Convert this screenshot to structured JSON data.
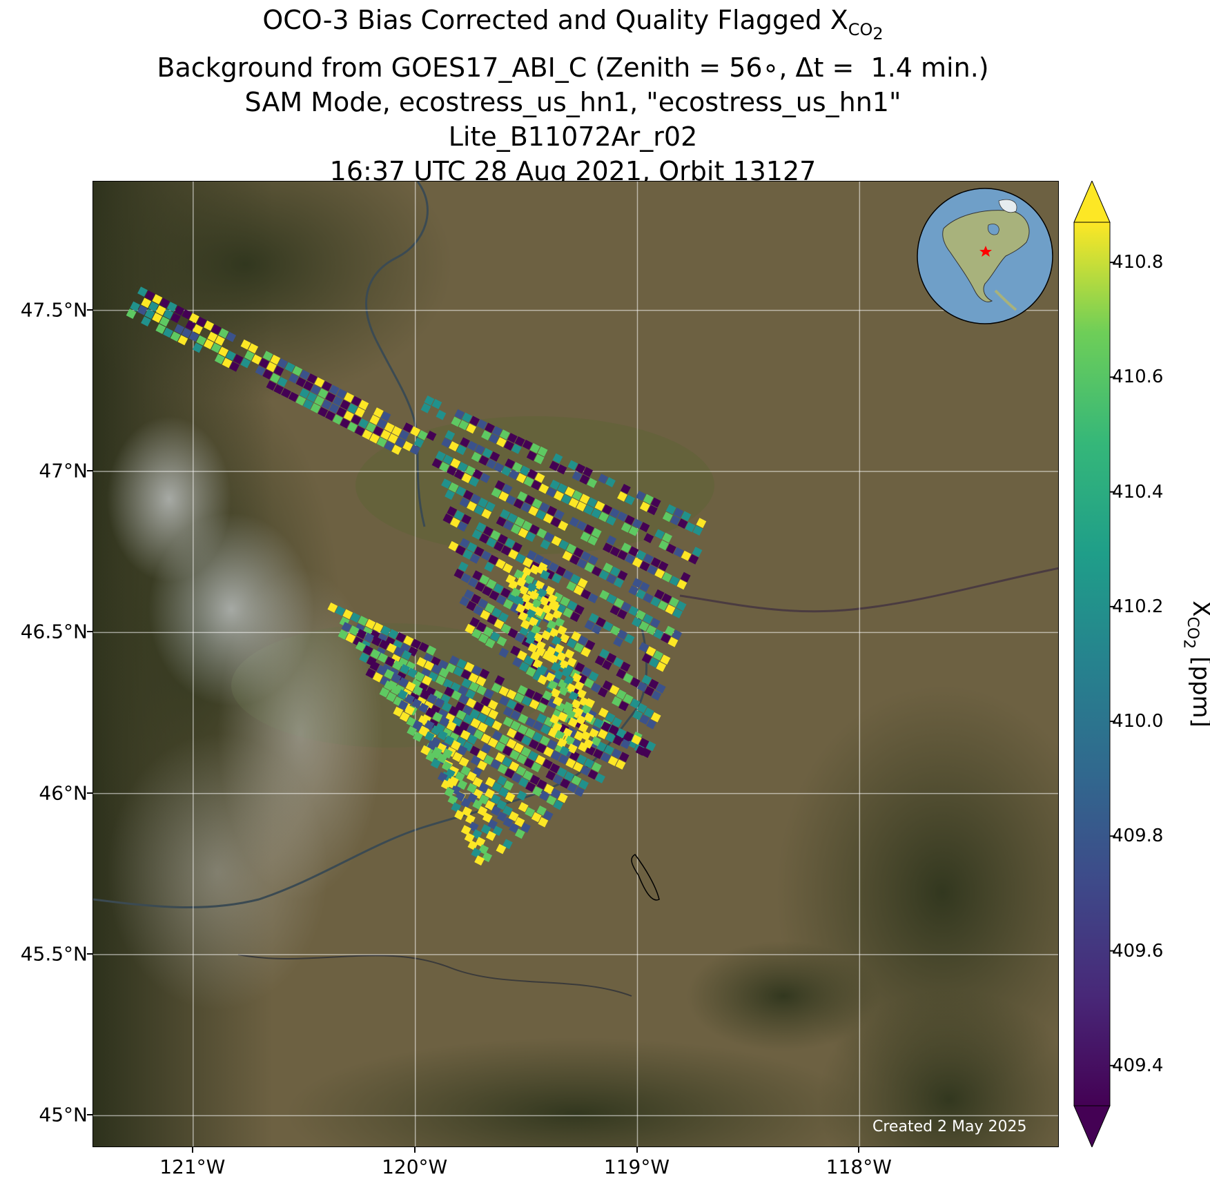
{
  "title": {
    "line1_prefix": "OCO-3 Bias Corrected and Quality Flagged X",
    "line1_sub": "CO",
    "line1_sub2": "2",
    "line2": "Background from GOES17_ABI_C (Zenith = 56∘, Δt =  1.4 min.)",
    "line3": "SAM Mode, ecostress_us_hn1, \"ecostress_us_hn1\"",
    "line4": "Lite_B11072Ar_r02",
    "line5": "16:37 UTC 28 Aug 2021, Orbit 13127"
  },
  "map": {
    "lon_range": [
      -121.45,
      -117.1
    ],
    "lat_range": [
      44.9,
      47.9
    ],
    "x_ticks": [
      {
        "value": -121,
        "label": "121°W"
      },
      {
        "value": -120,
        "label": "120°W"
      },
      {
        "value": -119,
        "label": "119°W"
      },
      {
        "value": -118,
        "label": "118°W"
      }
    ],
    "y_ticks": [
      {
        "value": 47.5,
        "label": "47.5°N"
      },
      {
        "value": 47.0,
        "label": "47°N"
      },
      {
        "value": 46.5,
        "label": "46.5°N"
      },
      {
        "value": 46.0,
        "label": "46°N"
      },
      {
        "value": 45.5,
        "label": "45.5°N"
      },
      {
        "value": 45.0,
        "label": "45°N"
      }
    ],
    "gridlines": true,
    "background": "satellite imagery (GOES17_ABI_C), semi-transparent",
    "swath_colors_low_to_high": [
      "#440154",
      "#3b528b",
      "#21918c",
      "#5ec962",
      "#fde725"
    ],
    "inset": {
      "type": "globe",
      "marker": "red star",
      "marker_color": "#ff0000"
    }
  },
  "credit": "Created 2 May 2025",
  "colorbar": {
    "min": 409.33,
    "max": 410.87,
    "ticks": [
      "409.4",
      "409.6",
      "409.8",
      "410.0",
      "410.2",
      "410.4",
      "410.6",
      "410.8"
    ],
    "tick_values": [
      409.4,
      409.6,
      409.8,
      410.0,
      410.2,
      410.4,
      410.6,
      410.8
    ],
    "extend": "both",
    "label_prefix": "X",
    "label_sub": "CO",
    "label_sub2": "2",
    "label_suffix": " [ppm]",
    "colormap": "viridis"
  }
}
